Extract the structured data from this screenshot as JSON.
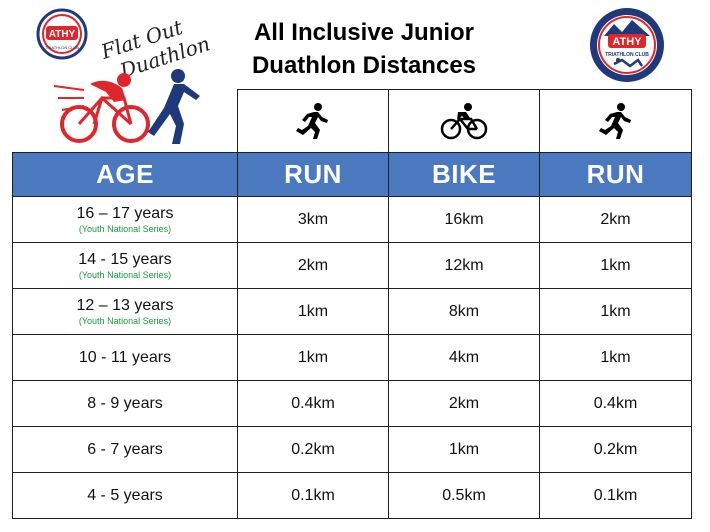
{
  "header": {
    "title_line1": "All Inclusive Junior",
    "title_line2": "Duathlon Distances",
    "left_logo": {
      "badge": "ATHY",
      "badge_sub": "TRIATHLON CLUB",
      "script_line1": "Flat Out",
      "script_line2": "Duathlon",
      "icon": "cyclist-runner-logo"
    },
    "right_logo": {
      "badge": "ATHY",
      "ring_text": "TRIATHLON CLUB",
      "icon": "athy-club-crest"
    }
  },
  "table": {
    "icons": [
      "runner-icon",
      "bicycle-icon",
      "runner-icon"
    ],
    "headers": [
      "AGE",
      "RUN",
      "BIKE",
      "RUN"
    ],
    "rows": [
      {
        "age": "16 – 17 years",
        "note": "(Youth National Series)",
        "run1": "3km",
        "bike": "16km",
        "run2": "2km"
      },
      {
        "age": "14 - 15 years",
        "note": "(Youth National Series)",
        "run1": "2km",
        "bike": "12km",
        "run2": "1km"
      },
      {
        "age": "12 – 13 years",
        "note": "(Youth National Series)",
        "run1": "1km",
        "bike": "8km",
        "run2": "1km"
      },
      {
        "age": "10 - 11 years",
        "note": "",
        "run1": "1km",
        "bike": "4km",
        "run2": "1km"
      },
      {
        "age": "8 - 9 years",
        "note": "",
        "run1": "0.4km",
        "bike": "2km",
        "run2": "0.4km"
      },
      {
        "age": "6 - 7 years",
        "note": "",
        "run1": "0.2km",
        "bike": "1km",
        "run2": "0.2km"
      },
      {
        "age": "4 - 5 years",
        "note": "",
        "run1": "0.1km",
        "bike": "0.5km",
        "run2": "0.1km"
      }
    ]
  },
  "colors": {
    "header_blue": "#4a79c0",
    "note_green": "#1a9a3c",
    "logo_red": "#e0262d",
    "logo_navy": "#1f3a7a"
  }
}
